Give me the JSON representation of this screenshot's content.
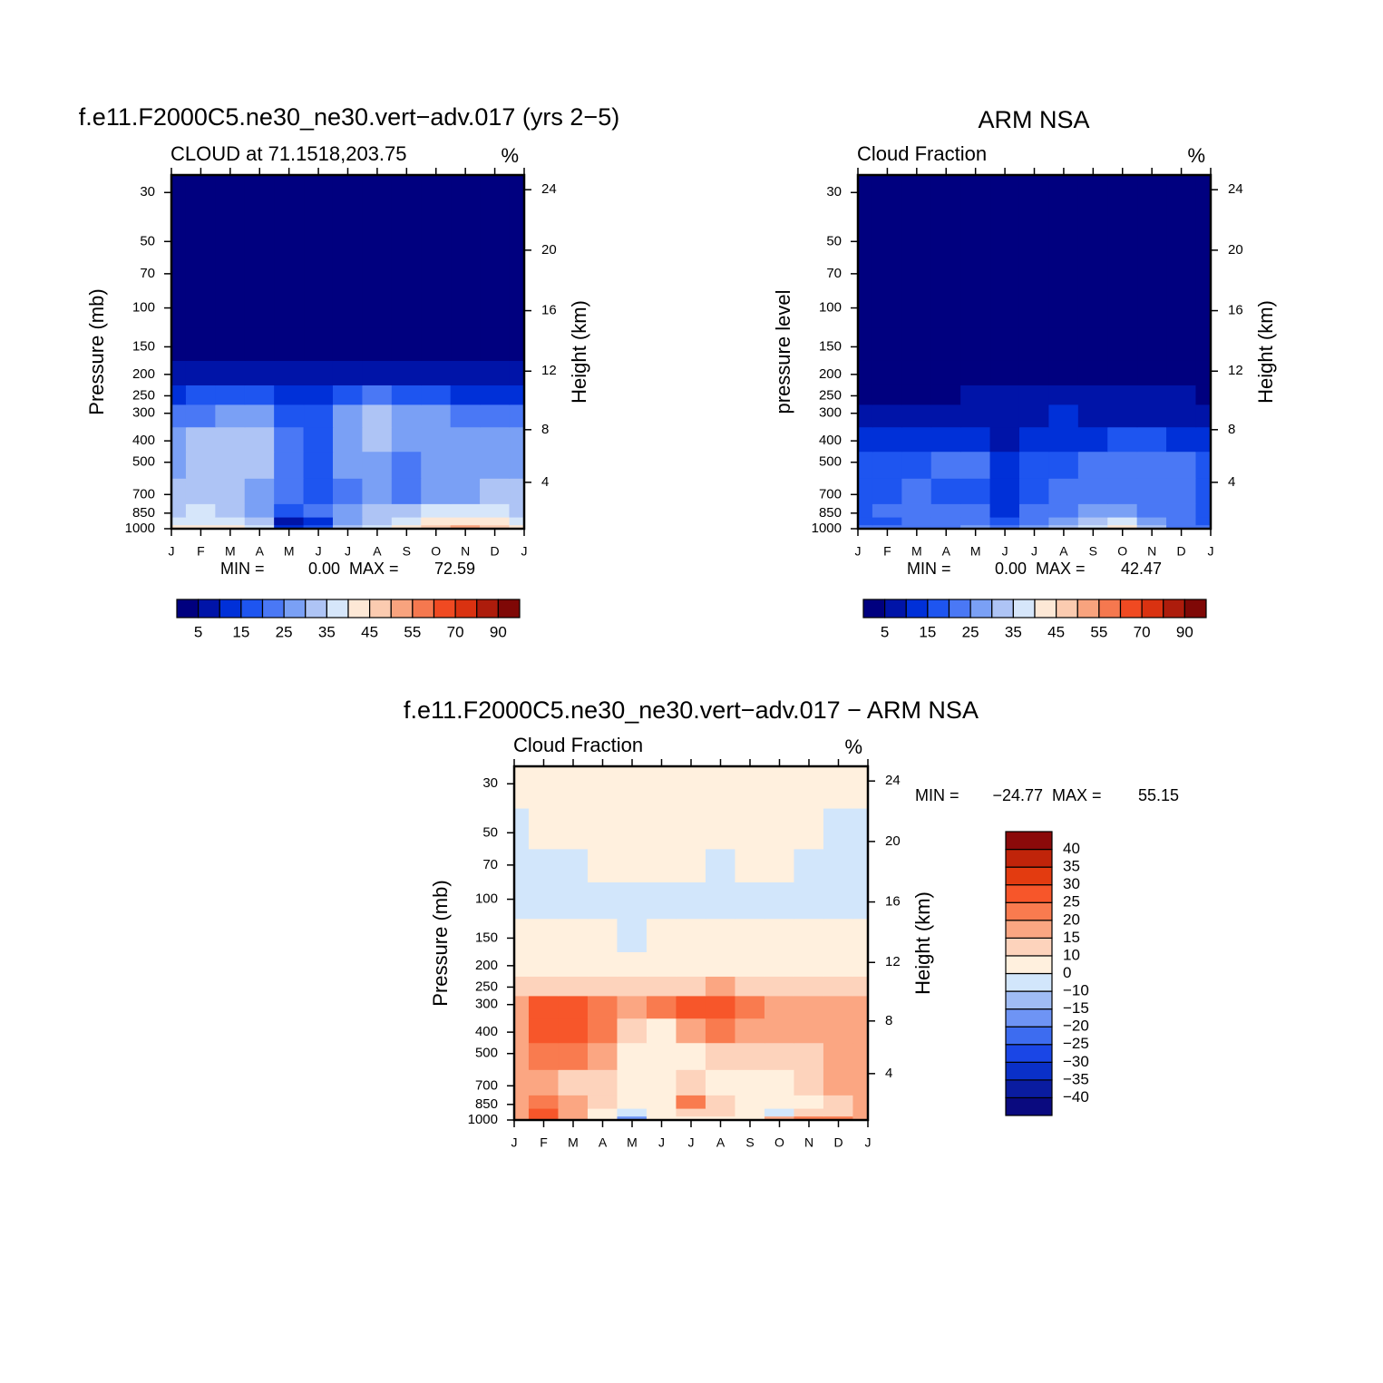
{
  "chart_data": [
    {
      "type": "contour",
      "title": "f.e11.F2000C5.ne30_ne30.vert−adv.017 (yrs 2−5)",
      "subtitle": "CLOUD at 71.1518,203.75",
      "units": "%",
      "ylabel": "Pressure (mb)",
      "y2label": "Height (km)",
      "categories": [
        "J",
        "F",
        "M",
        "A",
        "M",
        "J",
        "J",
        "A",
        "S",
        "O",
        "N",
        "D",
        "J"
      ],
      "y": [
        1000,
        925,
        850,
        700,
        500,
        400,
        300,
        250,
        200,
        150,
        100,
        70,
        50,
        30
      ],
      "values": [
        [
          40,
          42,
          40,
          38,
          10,
          15,
          30,
          38,
          42,
          45,
          52,
          45,
          40
        ],
        [
          36,
          38,
          37,
          32,
          8,
          12,
          28,
          34,
          38,
          40,
          44,
          40,
          36
        ],
        [
          33,
          35,
          33,
          28,
          18,
          20,
          26,
          30,
          33,
          35,
          36,
          36,
          33
        ],
        [
          30,
          30,
          30,
          26,
          20,
          18,
          24,
          27,
          24,
          26,
          28,
          32,
          30
        ],
        [
          27,
          30,
          30,
          30,
          22,
          18,
          26,
          28,
          24,
          26,
          26,
          28,
          27
        ],
        [
          27,
          30,
          31,
          32,
          22,
          17,
          29,
          30,
          28,
          26,
          26,
          27,
          27
        ],
        [
          22,
          24,
          26,
          25,
          18,
          16,
          28,
          32,
          28,
          25,
          24,
          23,
          22
        ],
        [
          14,
          16,
          17,
          16,
          14,
          14,
          18,
          20,
          17,
          15,
          14,
          14,
          14
        ],
        [
          6,
          7,
          8,
          8,
          7,
          8,
          9,
          9,
          8,
          7,
          6,
          6,
          6
        ],
        [
          1,
          1,
          1,
          1,
          1,
          1,
          1,
          1,
          1,
          1,
          1,
          1,
          1
        ],
        [
          0,
          0,
          0,
          0,
          0,
          0,
          0,
          0,
          0,
          0,
          0,
          0,
          0
        ],
        [
          0,
          0,
          0,
          0,
          0,
          0,
          0,
          0,
          0,
          0,
          0,
          0,
          0
        ],
        [
          0,
          0,
          0,
          0,
          0,
          0,
          0,
          0,
          0,
          0,
          0,
          0,
          0
        ],
        [
          0,
          0,
          0,
          0,
          0,
          0,
          0,
          0,
          0,
          0,
          0,
          0,
          0
        ]
      ],
      "ylim": [
        1000,
        25
      ],
      "log_y": true,
      "yticks": [
        30,
        50,
        70,
        100,
        150,
        200,
        250,
        300,
        400,
        500,
        700,
        850,
        1000
      ],
      "y2ticks": [
        4,
        8,
        12,
        16,
        20,
        24
      ],
      "min_label": "MIN =",
      "min": {
        "value": 0,
        "label": "0.00"
      },
      "max_label": "MAX =",
      "max": 72.59,
      "colorbar": {
        "orientation": "horizontal",
        "levels": [
          5,
          10,
          15,
          20,
          25,
          30,
          35,
          40,
          45,
          50,
          55,
          60,
          70,
          80,
          90
        ],
        "colors": [
          "#00007f",
          "#0014a8",
          "#0030d8",
          "#1e55f0",
          "#4a78f5",
          "#7aa0f5",
          "#aec4f5",
          "#d6e6fa",
          "#fde8d6",
          "#fbcbb0",
          "#f8a37e",
          "#f5784f",
          "#f04a22",
          "#d93211",
          "#ad1c0c",
          "#7f0806"
        ]
      }
    },
    {
      "type": "contour",
      "title": "ARM NSA",
      "subtitle": "Cloud Fraction",
      "units": "%",
      "ylabel": "pressure level",
      "y2label": "Height (km)",
      "categories": [
        "J",
        "F",
        "M",
        "A",
        "M",
        "J",
        "J",
        "A",
        "S",
        "O",
        "N",
        "D",
        "J"
      ],
      "y": [
        1000,
        925,
        850,
        700,
        500,
        400,
        300,
        250,
        200,
        150,
        100,
        70,
        50,
        30
      ],
      "values": [
        [
          20,
          20,
          22,
          24,
          28,
          20,
          25,
          30,
          35,
          42,
          30,
          22,
          20
        ],
        [
          18,
          18,
          20,
          22,
          24,
          16,
          22,
          26,
          30,
          36,
          26,
          20,
          18
        ],
        [
          18,
          20,
          20,
          20,
          22,
          14,
          20,
          22,
          26,
          28,
          24,
          20,
          18
        ],
        [
          16,
          18,
          20,
          17,
          16,
          12,
          16,
          20,
          22,
          22,
          22,
          20,
          16
        ],
        [
          16,
          17,
          18,
          22,
          20,
          10,
          16,
          18,
          20,
          20,
          20,
          20,
          16
        ],
        [
          13,
          12,
          10,
          10,
          13,
          9,
          12,
          14,
          14,
          15,
          16,
          14,
          13
        ],
        [
          5,
          6,
          7,
          7,
          8,
          8,
          9,
          10,
          8,
          7,
          7,
          8,
          5
        ],
        [
          3,
          3,
          3,
          4,
          5,
          6,
          7,
          8,
          6,
          5,
          5,
          6,
          3
        ],
        [
          2,
          2,
          2,
          2,
          3,
          3,
          4,
          4,
          3,
          2,
          2,
          3,
          2
        ],
        [
          0,
          0,
          0,
          0,
          0,
          0,
          0,
          0,
          0,
          0,
          0,
          0,
          0
        ],
        [
          0,
          0,
          0,
          0,
          0,
          0,
          0,
          0,
          0,
          0,
          0,
          0,
          0
        ],
        [
          0,
          0,
          0,
          0,
          0,
          0,
          0,
          0,
          0,
          0,
          0,
          0,
          0
        ],
        [
          0,
          0,
          0,
          0,
          0,
          0,
          0,
          0,
          0,
          0,
          0,
          0,
          0
        ],
        [
          0,
          0,
          0,
          0,
          0,
          0,
          0,
          0,
          0,
          0,
          0,
          0,
          0
        ]
      ],
      "ylim": [
        1000,
        25
      ],
      "log_y": true,
      "yticks": [
        30,
        50,
        70,
        100,
        150,
        200,
        250,
        300,
        400,
        500,
        700,
        850,
        1000
      ],
      "y2ticks": [
        4,
        8,
        12,
        16,
        20,
        24
      ],
      "min_label": "MIN =",
      "min": {
        "value": 0,
        "label": "0.00"
      },
      "max_label": "MAX =",
      "max": 42.47,
      "colorbar": {
        "orientation": "horizontal",
        "levels": [
          5,
          10,
          15,
          20,
          25,
          30,
          35,
          40,
          45,
          50,
          55,
          60,
          70,
          80,
          90
        ],
        "colors": [
          "#00007f",
          "#0014a8",
          "#0030d8",
          "#1e55f0",
          "#4a78f5",
          "#7aa0f5",
          "#aec4f5",
          "#d6e6fa",
          "#fde8d6",
          "#fbcbb0",
          "#f8a37e",
          "#f5784f",
          "#f04a22",
          "#d93211",
          "#ad1c0c",
          "#7f0806"
        ]
      }
    },
    {
      "type": "contour",
      "title": "f.e11.F2000C5.ne30_ne30.vert−adv.017 − ARM NSA",
      "subtitle": "Cloud Fraction",
      "units": "%",
      "ylabel": "Pressure (mb)",
      "y2label": "Height (km)",
      "categories": [
        "J",
        "F",
        "M",
        "A",
        "M",
        "J",
        "J",
        "A",
        "S",
        "O",
        "N",
        "D",
        "J"
      ],
      "y": [
        1000,
        925,
        850,
        700,
        500,
        400,
        300,
        250,
        200,
        150,
        100,
        70,
        50,
        30
      ],
      "values": [
        [
          16,
          25,
          17,
          8,
          -20,
          5,
          8,
          8,
          8,
          18,
          22,
          20,
          16
        ],
        [
          18,
          28,
          18,
          8,
          -2,
          4,
          10,
          10,
          6,
          -2,
          10,
          12,
          18
        ],
        [
          16,
          22,
          16,
          10,
          4,
          6,
          22,
          12,
          6,
          4,
          8,
          10,
          16
        ],
        [
          15,
          15,
          12,
          10,
          5,
          6,
          10,
          8,
          6,
          8,
          13,
          16,
          15
        ],
        [
          18,
          22,
          21,
          16,
          9,
          4,
          8,
          10,
          10,
          13,
          13,
          18,
          18
        ],
        [
          17,
          26,
          28,
          22,
          12,
          8,
          16,
          20,
          17,
          16,
          16,
          19,
          17
        ],
        [
          18,
          26,
          27,
          22,
          15,
          20,
          26,
          28,
          22,
          18,
          17,
          17,
          18
        ],
        [
          12,
          14,
          14,
          12,
          12,
          12,
          14,
          16,
          14,
          12,
          12,
          12,
          12
        ],
        [
          3,
          3,
          3,
          3,
          3,
          3,
          3,
          3,
          3,
          3,
          3,
          3,
          3
        ],
        [
          2,
          2,
          2,
          2,
          -2,
          2,
          2,
          2,
          2,
          2,
          2,
          2,
          2
        ],
        [
          -2,
          -2,
          -2,
          -2,
          -2,
          -2,
          -2,
          -2,
          -2,
          -2,
          -2,
          -2,
          -2
        ],
        [
          -2,
          -2,
          -2,
          2,
          2,
          2,
          2,
          -2,
          2,
          2,
          -2,
          -2,
          -2
        ],
        [
          -2,
          2,
          2,
          2,
          2,
          2,
          2,
          2,
          2,
          2,
          2,
          -2,
          -2
        ],
        [
          2,
          2,
          2,
          2,
          2,
          2,
          2,
          2,
          2,
          2,
          2,
          2,
          2
        ]
      ],
      "ylim": [
        1000,
        25
      ],
      "log_y": true,
      "yticks": [
        30,
        50,
        70,
        100,
        150,
        200,
        250,
        300,
        400,
        500,
        700,
        850,
        1000
      ],
      "y2ticks": [
        4,
        8,
        12,
        16,
        20,
        24
      ],
      "min_label": "MIN =",
      "min": {
        "value": -24.77,
        "label": "−24.77"
      },
      "max_label": "MAX =",
      "max": 55.15,
      "colorbar": {
        "orientation": "vertical",
        "levels": [
          {
            "value": -40,
            "label": "−40"
          },
          {
            "value": -35,
            "label": "−35"
          },
          {
            "value": -30,
            "label": "−30"
          },
          {
            "value": -25,
            "label": "−25"
          },
          {
            "value": -20,
            "label": "−20"
          },
          {
            "value": -15,
            "label": "−15"
          },
          {
            "value": -10,
            "label": "−10"
          },
          0,
          10,
          15,
          20,
          25,
          30,
          35,
          40
        ],
        "colors": [
          "#0a0a7f",
          "#0a1ca0",
          "#0a30c8",
          "#1a46e6",
          "#3d6cf0",
          "#6e94f5",
          "#a0bcf5",
          "#d2e6fb",
          "#fff0de",
          "#fdd3bc",
          "#fba682",
          "#f97b4f",
          "#f7562a",
          "#e33b10",
          "#c0240a",
          "#8b0a0a"
        ]
      }
    }
  ]
}
